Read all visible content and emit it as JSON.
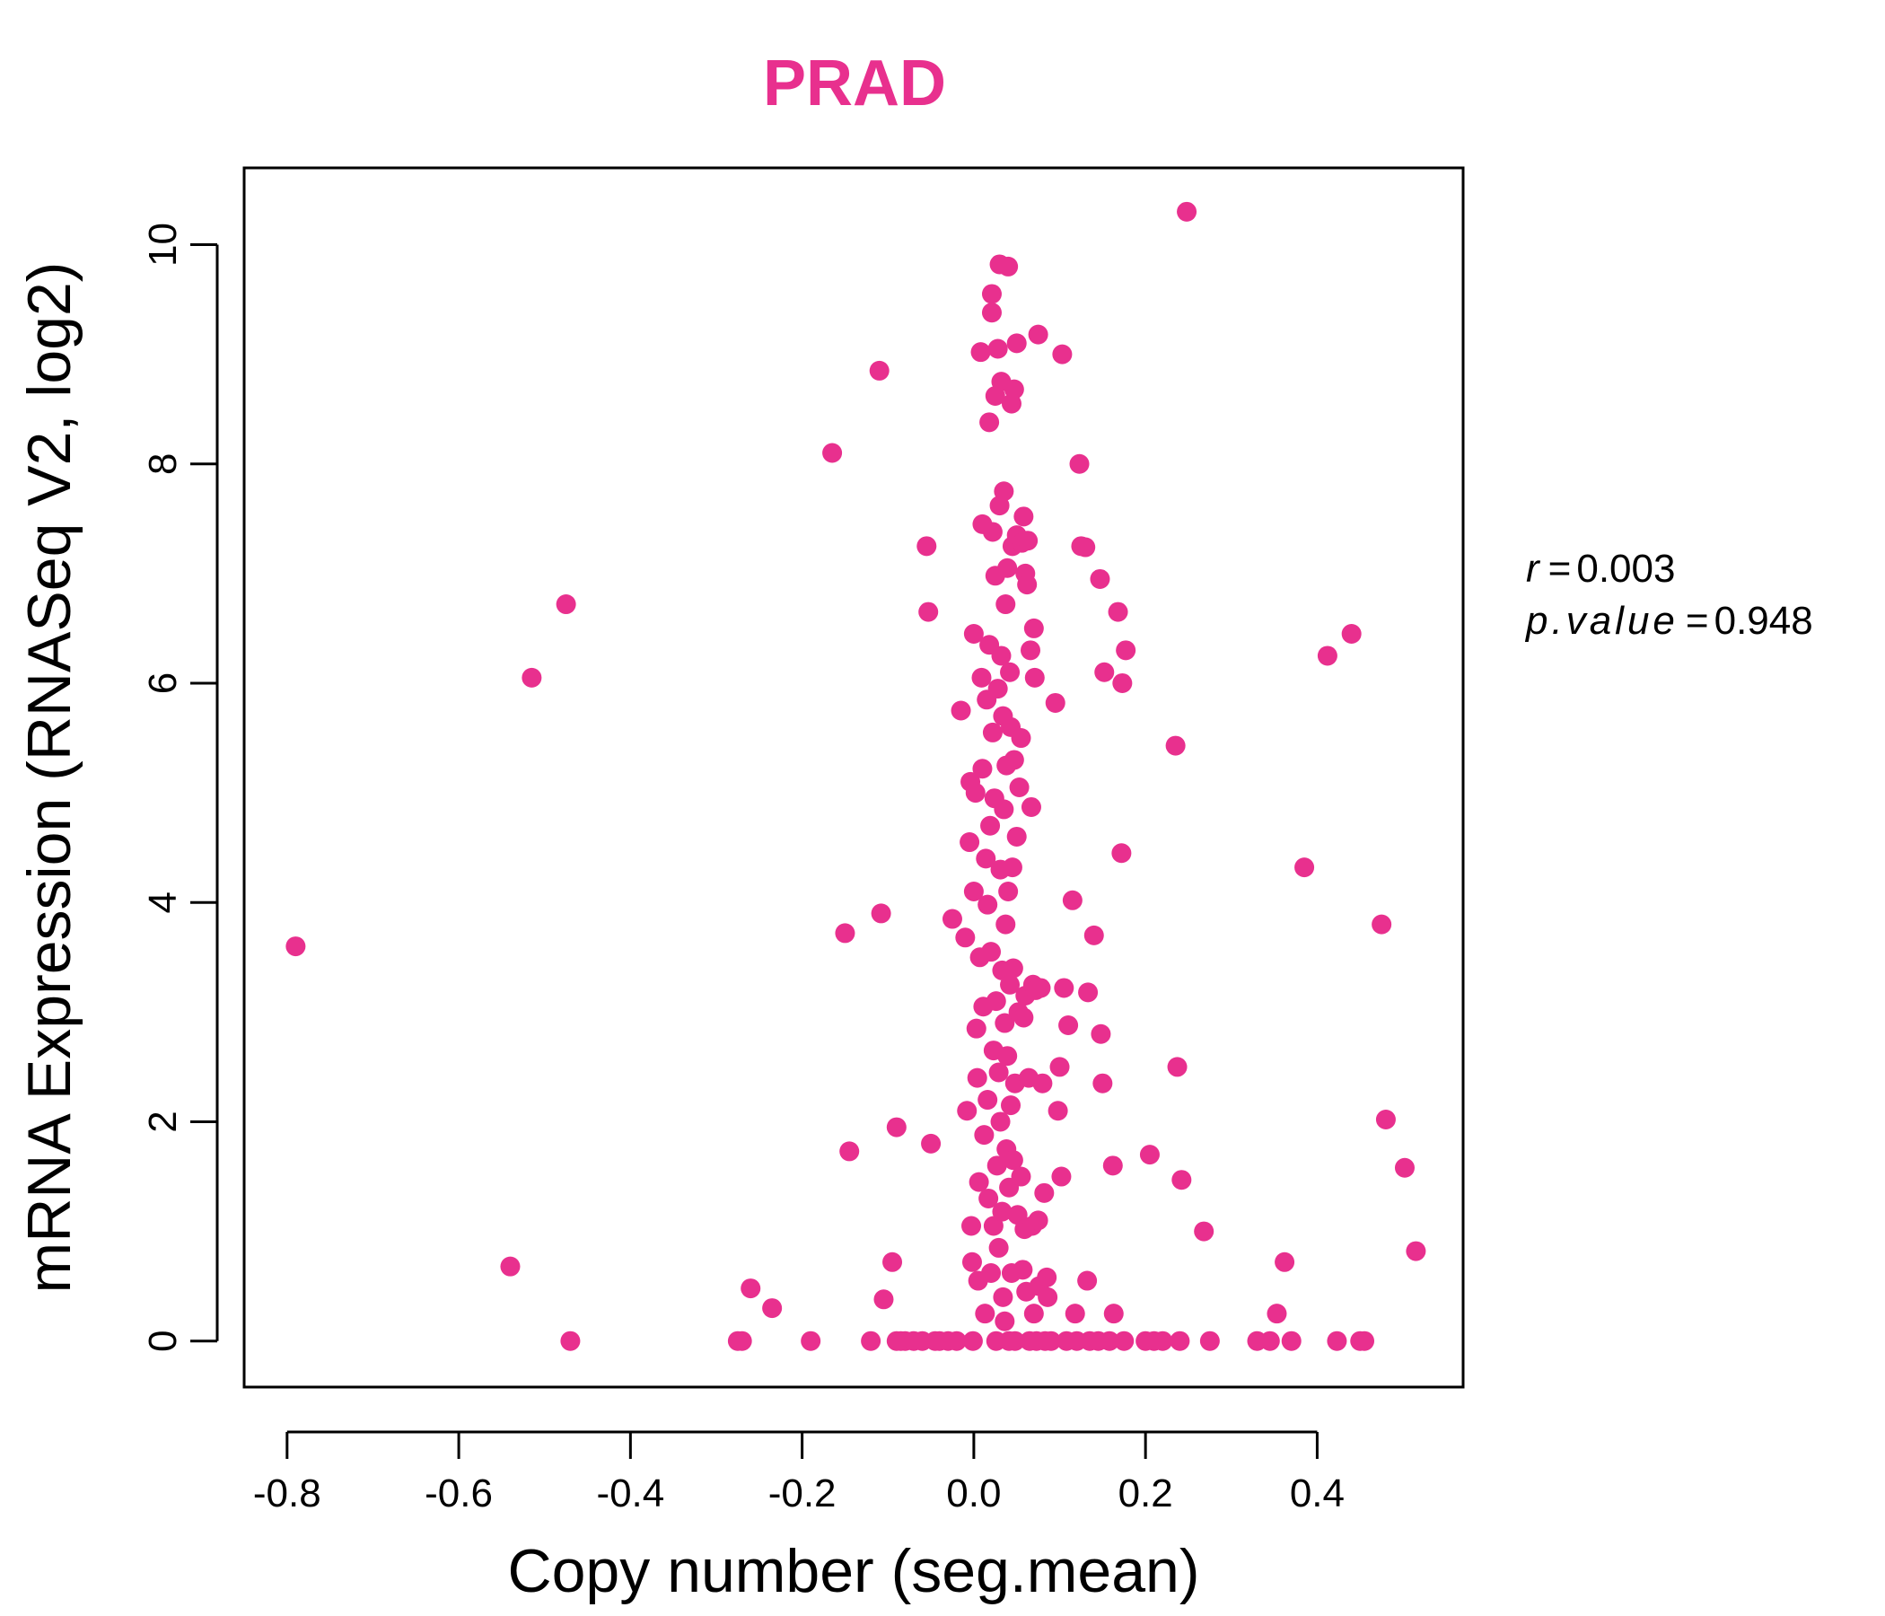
{
  "chart_data": {
    "type": "scatter",
    "title": "PRAD",
    "xlabel": "Copy number (seg.mean)",
    "ylabel": "mRNA Expression (RNASeq V2, log2)",
    "xlim": [
      -0.85,
      0.57
    ],
    "ylim": [
      -0.42,
      10.7
    ],
    "x_ticks": [
      -0.8,
      -0.6,
      -0.4,
      -0.2,
      0.0,
      0.2,
      0.4
    ],
    "x_tick_labels": [
      "-0.8",
      "-0.6",
      "-0.4",
      "-0.2",
      "0.0",
      "0.2",
      "0.4"
    ],
    "y_ticks": [
      0,
      2,
      4,
      6,
      8,
      10
    ],
    "y_tick_labels": [
      "0",
      "2",
      "4",
      "6",
      "8",
      "10"
    ],
    "grid": false,
    "legend": "none",
    "annotations": {
      "r_label": "r",
      "r_value": "0.003",
      "p_label": "p.value",
      "p_value": "0.948"
    },
    "series": [
      {
        "color": "#e8308e",
        "points": [
          [
            -0.79,
            3.6
          ],
          [
            -0.54,
            0.68
          ],
          [
            -0.515,
            6.05
          ],
          [
            -0.475,
            6.72
          ],
          [
            -0.47,
            0.0
          ],
          [
            -0.275,
            0.0
          ],
          [
            -0.27,
            0.0
          ],
          [
            -0.26,
            0.48
          ],
          [
            -0.235,
            0.3
          ],
          [
            -0.19,
            0.0
          ],
          [
            -0.165,
            8.1
          ],
          [
            -0.15,
            3.72
          ],
          [
            -0.145,
            1.73
          ],
          [
            -0.12,
            0.0
          ],
          [
            -0.11,
            8.85
          ],
          [
            -0.108,
            3.9
          ],
          [
            -0.105,
            0.38
          ],
          [
            -0.095,
            0.72
          ],
          [
            -0.09,
            1.95
          ],
          [
            -0.09,
            0.0
          ],
          [
            -0.085,
            0.0
          ],
          [
            -0.08,
            0.0
          ],
          [
            -0.07,
            0.0
          ],
          [
            -0.06,
            0.0
          ],
          [
            -0.055,
            7.25
          ],
          [
            -0.053,
            6.65
          ],
          [
            -0.05,
            1.8
          ],
          [
            -0.045,
            0.0
          ],
          [
            -0.04,
            0.0
          ],
          [
            -0.03,
            0.0
          ],
          [
            -0.025,
            3.85
          ],
          [
            -0.02,
            0.0
          ],
          [
            -0.015,
            5.75
          ],
          [
            -0.01,
            3.68
          ],
          [
            -0.008,
            2.1
          ],
          [
            -0.005,
            4.55
          ],
          [
            -0.004,
            5.1
          ],
          [
            -0.003,
            1.05
          ],
          [
            -0.002,
            0.72
          ],
          [
            -0.001,
            0.0
          ],
          [
            0.0,
            4.1
          ],
          [
            0.0,
            6.45
          ],
          [
            0.002,
            5.0
          ],
          [
            0.003,
            2.85
          ],
          [
            0.004,
            2.4
          ],
          [
            0.005,
            0.55
          ],
          [
            0.006,
            1.45
          ],
          [
            0.007,
            3.5
          ],
          [
            0.008,
            9.02
          ],
          [
            0.009,
            6.05
          ],
          [
            0.01,
            7.45
          ],
          [
            0.01,
            5.22
          ],
          [
            0.011,
            3.05
          ],
          [
            0.012,
            1.88
          ],
          [
            0.013,
            0.25
          ],
          [
            0.014,
            4.4
          ],
          [
            0.015,
            5.85
          ],
          [
            0.016,
            3.98
          ],
          [
            0.016,
            2.2
          ],
          [
            0.017,
            1.3
          ],
          [
            0.018,
            8.38
          ],
          [
            0.018,
            6.35
          ],
          [
            0.019,
            4.7
          ],
          [
            0.02,
            3.55
          ],
          [
            0.02,
            0.62
          ],
          [
            0.021,
            9.55
          ],
          [
            0.021,
            9.38
          ],
          [
            0.022,
            7.38
          ],
          [
            0.022,
            5.55
          ],
          [
            0.023,
            2.65
          ],
          [
            0.023,
            1.05
          ],
          [
            0.024,
            4.95
          ],
          [
            0.025,
            8.62
          ],
          [
            0.025,
            6.98
          ],
          [
            0.026,
            3.1
          ],
          [
            0.026,
            0.0
          ],
          [
            0.027,
            1.6
          ],
          [
            0.028,
            9.05
          ],
          [
            0.028,
            5.95
          ],
          [
            0.029,
            2.45
          ],
          [
            0.029,
            0.85
          ],
          [
            0.03,
            9.82
          ],
          [
            0.03,
            7.62
          ],
          [
            0.031,
            4.3
          ],
          [
            0.031,
            2.0
          ],
          [
            0.032,
            8.75
          ],
          [
            0.032,
            6.25
          ],
          [
            0.033,
            3.38
          ],
          [
            0.033,
            1.18
          ],
          [
            0.034,
            5.7
          ],
          [
            0.034,
            0.4
          ],
          [
            0.035,
            7.75
          ],
          [
            0.035,
            4.85
          ],
          [
            0.036,
            2.9
          ],
          [
            0.036,
            0.18
          ],
          [
            0.037,
            6.72
          ],
          [
            0.037,
            3.8
          ],
          [
            0.038,
            5.25
          ],
          [
            0.038,
            1.75
          ],
          [
            0.039,
            7.05
          ],
          [
            0.039,
            2.6
          ],
          [
            0.04,
            9.8
          ],
          [
            0.04,
            4.1
          ],
          [
            0.041,
            0.0
          ],
          [
            0.041,
            1.4
          ],
          [
            0.042,
            6.1
          ],
          [
            0.042,
            3.25
          ],
          [
            0.043,
            5.6
          ],
          [
            0.043,
            2.15
          ],
          [
            0.044,
            8.55
          ],
          [
            0.044,
            0.62
          ],
          [
            0.045,
            7.25
          ],
          [
            0.045,
            4.32
          ],
          [
            0.046,
            1.65
          ],
          [
            0.046,
            3.4
          ],
          [
            0.047,
            8.68
          ],
          [
            0.047,
            5.3
          ],
          [
            0.048,
            2.35
          ],
          [
            0.048,
            0.0
          ],
          [
            0.05,
            9.1
          ],
          [
            0.05,
            7.35
          ],
          [
            0.05,
            4.6
          ],
          [
            0.051,
            1.15
          ],
          [
            0.052,
            3.0
          ],
          [
            0.053,
            5.05
          ],
          [
            0.055,
            5.5
          ],
          [
            0.055,
            1.5
          ],
          [
            0.056,
            7.28
          ],
          [
            0.057,
            0.65
          ],
          [
            0.058,
            7.52
          ],
          [
            0.058,
            2.95
          ],
          [
            0.059,
            1.02
          ],
          [
            0.06,
            7.0
          ],
          [
            0.06,
            3.15
          ],
          [
            0.061,
            0.45
          ],
          [
            0.062,
            6.9
          ],
          [
            0.063,
            7.3
          ],
          [
            0.064,
            2.4
          ],
          [
            0.065,
            0.0
          ],
          [
            0.066,
            6.3
          ],
          [
            0.067,
            4.87
          ],
          [
            0.068,
            1.05
          ],
          [
            0.069,
            3.25
          ],
          [
            0.07,
            6.5
          ],
          [
            0.07,
            0.25
          ],
          [
            0.071,
            6.05
          ],
          [
            0.072,
            3.2
          ],
          [
            0.073,
            0.0
          ],
          [
            0.075,
            9.18
          ],
          [
            0.075,
            1.1
          ],
          [
            0.076,
            0.5
          ],
          [
            0.078,
            3.22
          ],
          [
            0.08,
            2.35
          ],
          [
            0.082,
            1.35
          ],
          [
            0.083,
            0.0
          ],
          [
            0.085,
            0.58
          ],
          [
            0.086,
            0.4
          ],
          [
            0.09,
            0.0
          ],
          [
            0.095,
            5.82
          ],
          [
            0.098,
            2.1
          ],
          [
            0.1,
            2.5
          ],
          [
            0.102,
            1.5
          ],
          [
            0.103,
            9.0
          ],
          [
            0.105,
            3.22
          ],
          [
            0.108,
            0.0
          ],
          [
            0.11,
            2.88
          ],
          [
            0.115,
            4.02
          ],
          [
            0.118,
            0.25
          ],
          [
            0.12,
            0.0
          ],
          [
            0.123,
            8.0
          ],
          [
            0.125,
            7.25
          ],
          [
            0.13,
            7.24
          ],
          [
            0.132,
            0.55
          ],
          [
            0.133,
            3.18
          ],
          [
            0.135,
            0.0
          ],
          [
            0.14,
            3.7
          ],
          [
            0.145,
            0.0
          ],
          [
            0.147,
            6.95
          ],
          [
            0.148,
            2.8
          ],
          [
            0.15,
            2.35
          ],
          [
            0.152,
            6.1
          ],
          [
            0.158,
            0.0
          ],
          [
            0.162,
            1.6
          ],
          [
            0.163,
            0.25
          ],
          [
            0.168,
            6.65
          ],
          [
            0.172,
            4.45
          ],
          [
            0.173,
            6.0
          ],
          [
            0.175,
            0.0
          ],
          [
            0.177,
            6.3
          ],
          [
            0.2,
            0.0
          ],
          [
            0.205,
            1.7
          ],
          [
            0.21,
            0.0
          ],
          [
            0.22,
            0.0
          ],
          [
            0.235,
            5.43
          ],
          [
            0.237,
            2.5
          ],
          [
            0.24,
            0.0
          ],
          [
            0.242,
            1.47
          ],
          [
            0.248,
            10.3
          ],
          [
            0.268,
            1.0
          ],
          [
            0.275,
            0.0
          ],
          [
            0.33,
            0.0
          ],
          [
            0.345,
            0.0
          ],
          [
            0.353,
            0.25
          ],
          [
            0.362,
            0.72
          ],
          [
            0.37,
            0.0
          ],
          [
            0.385,
            4.32
          ],
          [
            0.412,
            6.25
          ],
          [
            0.423,
            0.0
          ],
          [
            0.44,
            6.45
          ],
          [
            0.45,
            0.0
          ],
          [
            0.455,
            0.0
          ],
          [
            0.475,
            3.8
          ],
          [
            0.48,
            2.02
          ],
          [
            0.502,
            1.58
          ],
          [
            0.515,
            0.82
          ]
        ]
      }
    ]
  }
}
